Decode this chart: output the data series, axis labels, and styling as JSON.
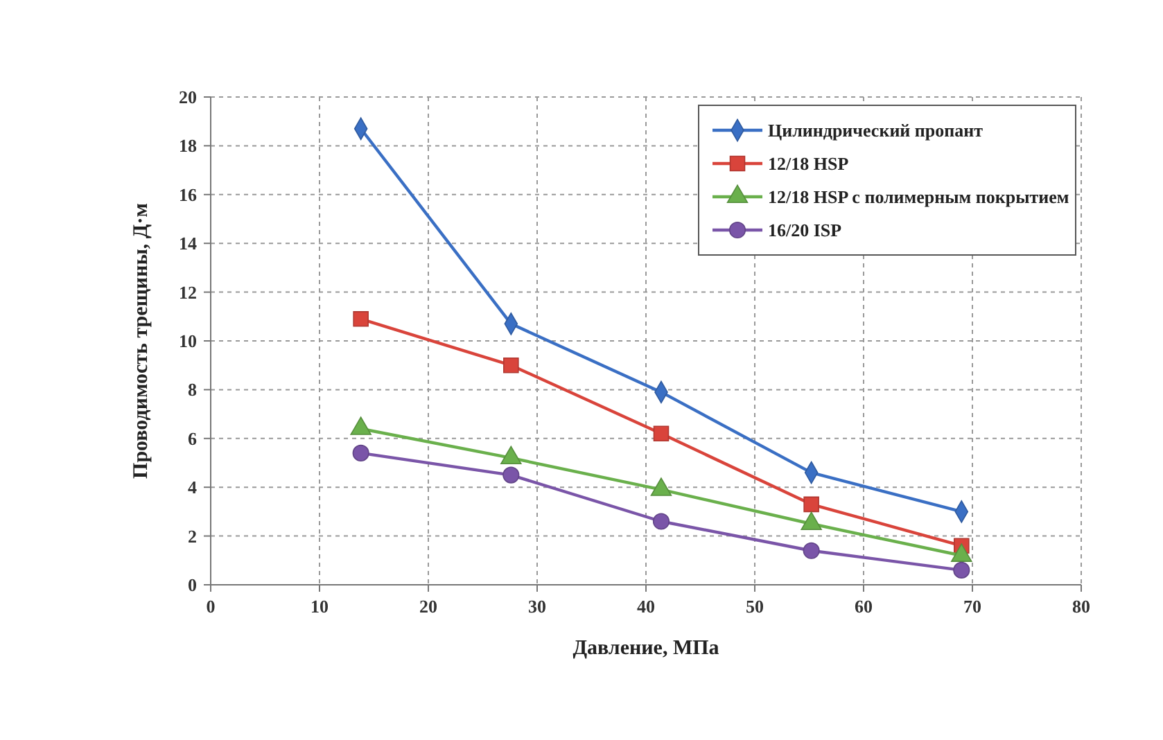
{
  "chart_data": {
    "type": "line",
    "xlabel": "Давление, МПа",
    "ylabel": "Проводимость трещины, Д·м",
    "x": [
      13.8,
      27.6,
      41.4,
      55.2,
      69
    ],
    "xlim": [
      0,
      80
    ],
    "xticks": [
      0,
      10,
      20,
      30,
      40,
      50,
      60,
      70,
      80
    ],
    "ylim": [
      0,
      20
    ],
    "yticks": [
      0,
      2,
      4,
      6,
      8,
      10,
      12,
      14,
      16,
      18,
      20
    ],
    "grid": true,
    "legend": "top right",
    "line_style": "solid",
    "series": [
      {
        "name": "Цилиндрический пропант",
        "color": "#3a6fc4",
        "marker": "diamond",
        "values": [
          18.7,
          10.7,
          7.9,
          4.6,
          3.0
        ]
      },
      {
        "name": "12/18 HSP",
        "color": "#d9443b",
        "marker": "square",
        "values": [
          10.9,
          9.0,
          6.2,
          3.3,
          1.6
        ]
      },
      {
        "name": "12/18 HSP с полимерным покрытием",
        "color": "#6ab04c",
        "marker": "triangle",
        "values": [
          6.4,
          5.2,
          3.9,
          2.5,
          1.2
        ]
      },
      {
        "name": "16/20 ISP",
        "color": "#7a55a8",
        "marker": "circle",
        "values": [
          5.4,
          4.5,
          2.6,
          1.4,
          0.6
        ]
      }
    ]
  }
}
